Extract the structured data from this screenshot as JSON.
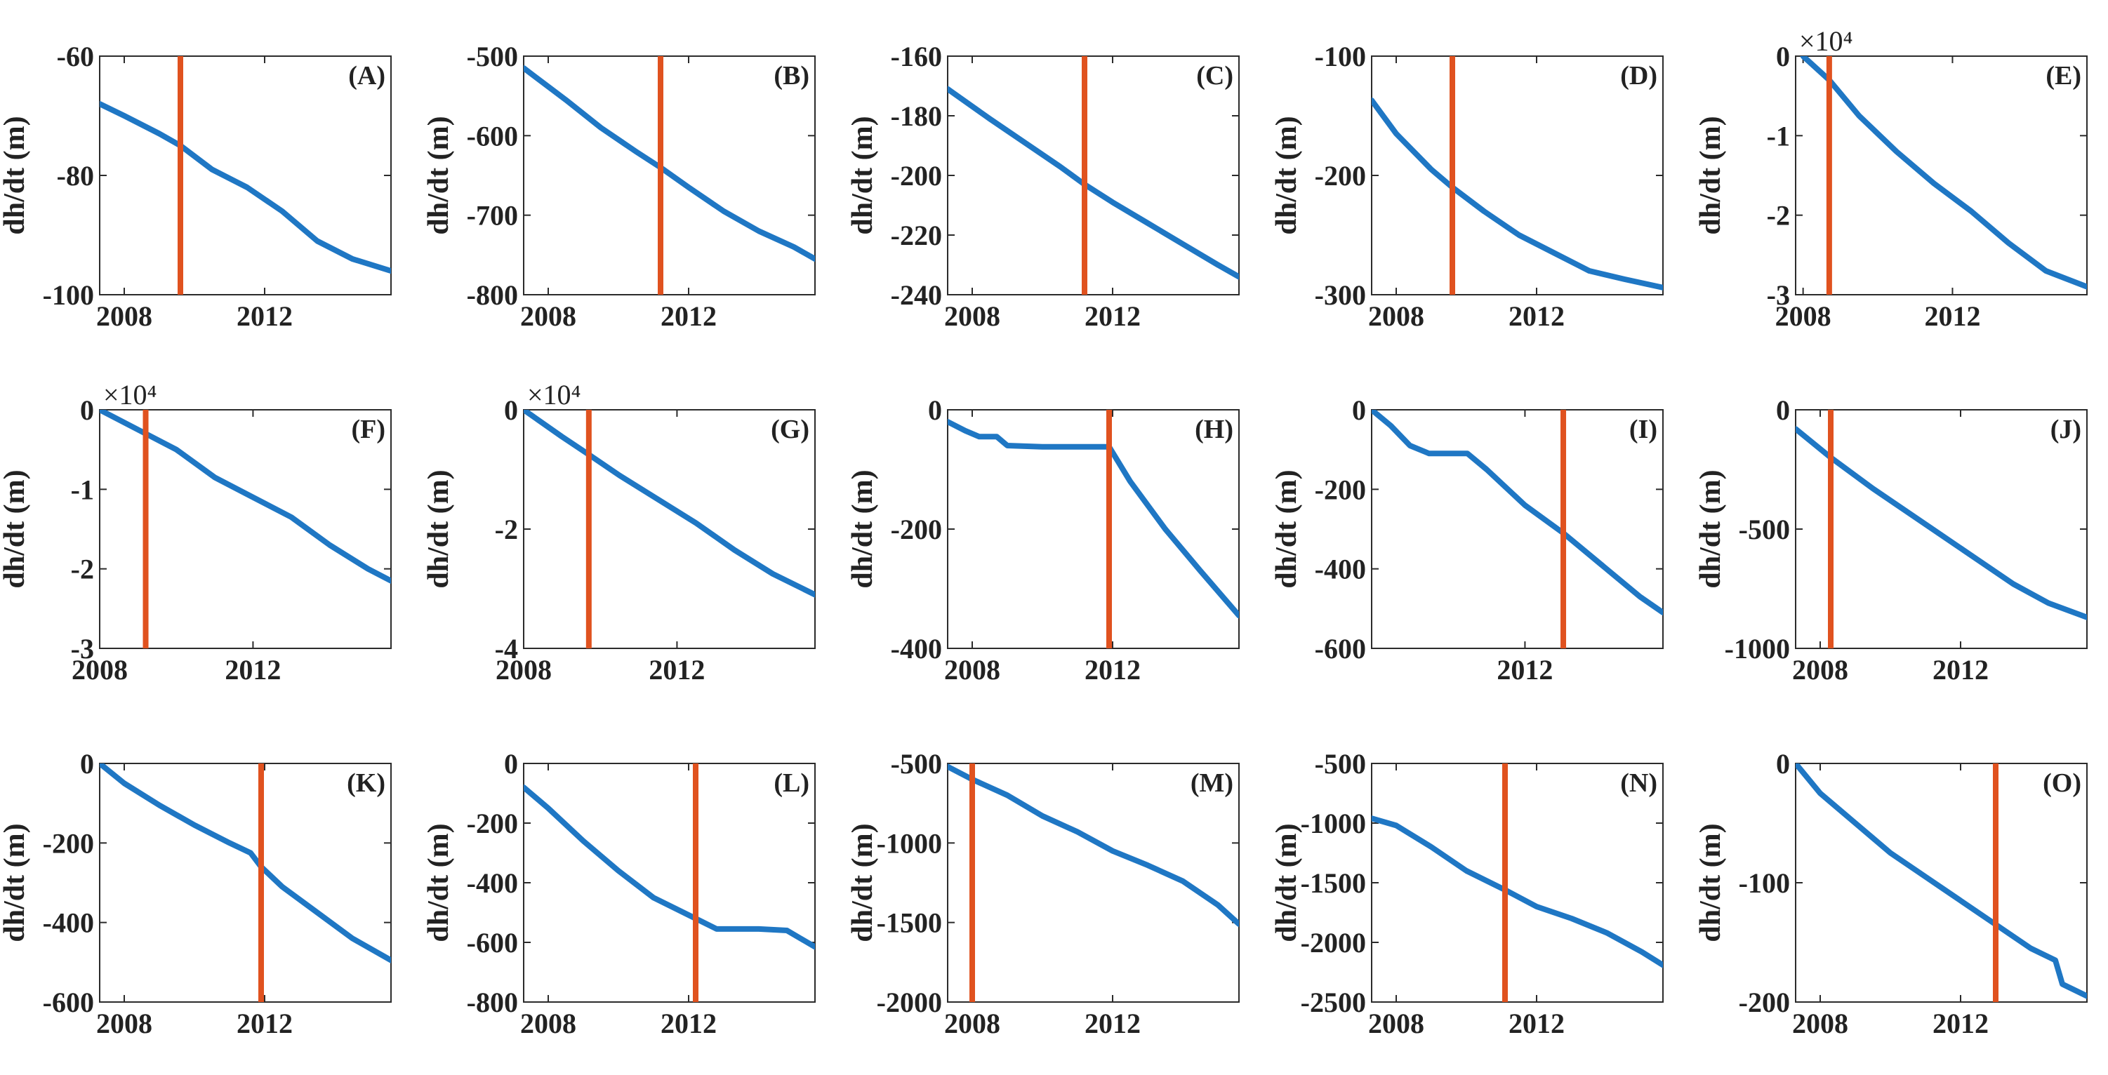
{
  "colors": {
    "series": "#1f77c4",
    "marker": "#e0521f",
    "axis": "#2b2b2b",
    "text": "#222222"
  },
  "chart_data": [
    {
      "panel": "(A)",
      "type": "line",
      "ylabel": "dh/dt (m)",
      "xlim": [
        2007.3,
        2015.6
      ],
      "ylim": [
        -100,
        -60
      ],
      "yticks": [
        -60,
        -80,
        -100
      ],
      "xticks": [
        2008,
        2012
      ],
      "y_multiplier": "",
      "marker_x": 2009.6,
      "x": [
        2007.3,
        2008.0,
        2009.0,
        2009.6,
        2010.5,
        2011.5,
        2012.5,
        2013.5,
        2014.5,
        2015.6
      ],
      "y": [
        -68,
        -70,
        -73,
        -75,
        -79,
        -82,
        -86,
        -91,
        -94,
        -96
      ]
    },
    {
      "panel": "(B)",
      "type": "line",
      "ylabel": "dh/dt (m)",
      "xlim": [
        2007.3,
        2015.6
      ],
      "ylim": [
        -800,
        -500
      ],
      "yticks": [
        -500,
        -600,
        -700,
        -800
      ],
      "xticks": [
        2008,
        2012
      ],
      "y_multiplier": "",
      "marker_x": 2011.2,
      "x": [
        2007.3,
        2008.5,
        2009.5,
        2010.5,
        2011.2,
        2012.0,
        2013.0,
        2014.0,
        2015.0,
        2015.6
      ],
      "y": [
        -515,
        -555,
        -590,
        -620,
        -640,
        -665,
        -695,
        -720,
        -740,
        -755
      ]
    },
    {
      "panel": "(C)",
      "type": "line",
      "ylabel": "dh/dt (m)",
      "xlim": [
        2007.3,
        2015.6
      ],
      "ylim": [
        -240,
        -160
      ],
      "yticks": [
        -160,
        -180,
        -200,
        -220,
        -240
      ],
      "xticks": [
        2008,
        2012
      ],
      "y_multiplier": "",
      "marker_x": 2011.2,
      "x": [
        2007.3,
        2008.5,
        2009.5,
        2010.5,
        2011.2,
        2012.0,
        2013.0,
        2014.0,
        2015.0,
        2015.6
      ],
      "y": [
        -171,
        -181,
        -189,
        -197,
        -203,
        -209,
        -216,
        -223,
        -230,
        -234
      ]
    },
    {
      "panel": "(D)",
      "type": "line",
      "ylabel": "dh/dt (m)",
      "xlim": [
        2007.3,
        2015.6
      ],
      "ylim": [
        -300,
        -100
      ],
      "yticks": [
        -100,
        -200,
        -300
      ],
      "xticks": [
        2008,
        2012
      ],
      "y_multiplier": "",
      "marker_x": 2009.6,
      "x": [
        2007.3,
        2008.0,
        2009.0,
        2009.6,
        2010.5,
        2011.5,
        2012.5,
        2013.5,
        2014.5,
        2015.6
      ],
      "y": [
        -137,
        -165,
        -195,
        -210,
        -230,
        -250,
        -265,
        -280,
        -287,
        -294
      ]
    },
    {
      "panel": "(E)",
      "type": "line",
      "ylabel": "dh/dt (m)",
      "xlim": [
        2007.8,
        2015.6
      ],
      "ylim": [
        -3,
        0
      ],
      "yticks": [
        0,
        -1,
        -2,
        -3
      ],
      "xticks": [
        2008,
        2012
      ],
      "y_multiplier": "×10⁴",
      "marker_x": 2008.7,
      "x": [
        2008.0,
        2008.7,
        2009.5,
        2010.5,
        2011.5,
        2012.5,
        2013.5,
        2014.5,
        2015.6
      ],
      "y": [
        0,
        -0.3,
        -0.75,
        -1.2,
        -1.6,
        -1.95,
        -2.35,
        -2.7,
        -2.9
      ]
    },
    {
      "panel": "(F)",
      "type": "line",
      "ylabel": "dh/dt (m)",
      "xlim": [
        2008.0,
        2015.6
      ],
      "ylim": [
        -3,
        0
      ],
      "yticks": [
        0,
        -1,
        -2,
        -3
      ],
      "xticks": [
        2008,
        2012
      ],
      "y_multiplier": "×10⁴",
      "marker_x": 2009.2,
      "x": [
        2008.0,
        2009.2,
        2010.0,
        2011.0,
        2012.0,
        2013.0,
        2014.0,
        2015.0,
        2015.6
      ],
      "y": [
        0,
        -0.3,
        -0.5,
        -0.85,
        -1.1,
        -1.35,
        -1.7,
        -2.0,
        -2.15
      ]
    },
    {
      "panel": "(G)",
      "type": "line",
      "ylabel": "dh/dt (m)",
      "xlim": [
        2008.0,
        2015.6
      ],
      "ylim": [
        -4,
        0
      ],
      "yticks": [
        0,
        -2,
        -4
      ],
      "xticks": [
        2008,
        2012
      ],
      "y_multiplier": "×10⁴",
      "marker_x": 2009.7,
      "x": [
        2008.0,
        2009.0,
        2009.7,
        2010.5,
        2011.5,
        2012.5,
        2013.5,
        2014.5,
        2015.6
      ],
      "y": [
        0,
        -0.45,
        -0.75,
        -1.1,
        -1.5,
        -1.9,
        -2.35,
        -2.75,
        -3.1
      ]
    },
    {
      "panel": "(H)",
      "type": "line",
      "ylabel": "dh/dt (m)",
      "xlim": [
        2007.3,
        2015.6
      ],
      "ylim": [
        -400,
        0
      ],
      "yticks": [
        0,
        -200,
        -400
      ],
      "xticks": [
        2008,
        2012
      ],
      "y_multiplier": "",
      "marker_x": 2011.9,
      "x": [
        2007.3,
        2007.8,
        2008.2,
        2008.7,
        2009.0,
        2010.0,
        2011.0,
        2011.9,
        2012.5,
        2013.5,
        2014.5,
        2015.6
      ],
      "y": [
        -20,
        -35,
        -45,
        -45,
        -60,
        -62,
        -62,
        -62,
        -120,
        -200,
        -270,
        -345
      ]
    },
    {
      "panel": "(I)",
      "type": "line",
      "ylabel": "dh/dt (m)",
      "xlim": [
        2008.0,
        2015.6
      ],
      "ylim": [
        -600,
        0
      ],
      "yticks": [
        0,
        -200,
        -400,
        -600
      ],
      "xticks": [
        2012
      ],
      "y_multiplier": "",
      "marker_x": 2013.0,
      "x": [
        2008.0,
        2008.5,
        2009.0,
        2009.5,
        2010.0,
        2010.5,
        2011.0,
        2012.0,
        2013.0,
        2014.0,
        2015.0,
        2015.6
      ],
      "y": [
        0,
        -40,
        -90,
        -110,
        -110,
        -110,
        -150,
        -240,
        -310,
        -390,
        -470,
        -510
      ]
    },
    {
      "panel": "(J)",
      "type": "line",
      "ylabel": "dh/dt (m)",
      "xlim": [
        2007.3,
        2015.6
      ],
      "ylim": [
        -1000,
        0
      ],
      "yticks": [
        0,
        -500,
        -1000
      ],
      "xticks": [
        2008,
        2012
      ],
      "y_multiplier": "",
      "marker_x": 2008.3,
      "x": [
        2007.3,
        2008.3,
        2009.5,
        2010.5,
        2011.5,
        2012.5,
        2013.5,
        2014.5,
        2015.6
      ],
      "y": [
        -80,
        -200,
        -330,
        -430,
        -530,
        -630,
        -730,
        -810,
        -870
      ]
    },
    {
      "panel": "(K)",
      "type": "line",
      "ylabel": "dh/dt (m)",
      "xlim": [
        2007.3,
        2015.6
      ],
      "ylim": [
        -600,
        0
      ],
      "yticks": [
        0,
        -200,
        -400,
        -600
      ],
      "xticks": [
        2008,
        2012
      ],
      "y_multiplier": "",
      "marker_x": 2011.9,
      "x": [
        2007.3,
        2008.0,
        2009.0,
        2010.0,
        2011.0,
        2011.6,
        2011.9,
        2012.5,
        2013.5,
        2014.5,
        2015.6
      ],
      "y": [
        0,
        -50,
        -105,
        -155,
        -200,
        -225,
        -260,
        -310,
        -375,
        -440,
        -495
      ]
    },
    {
      "panel": "(L)",
      "type": "line",
      "ylabel": "dh/dt (m)",
      "xlim": [
        2007.3,
        2015.6
      ],
      "ylim": [
        -800,
        0
      ],
      "yticks": [
        0,
        -200,
        -400,
        -600,
        -800
      ],
      "xticks": [
        2008,
        2012
      ],
      "y_multiplier": "",
      "marker_x": 2012.2,
      "x": [
        2007.3,
        2008.0,
        2009.0,
        2010.0,
        2011.0,
        2012.2,
        2012.8,
        2014.0,
        2014.8,
        2015.6
      ],
      "y": [
        -80,
        -150,
        -260,
        -360,
        -450,
        -520,
        -555,
        -555,
        -560,
        -615
      ]
    },
    {
      "panel": "(M)",
      "type": "line",
      "ylabel": "dh/dt (m)",
      "xlim": [
        2007.3,
        2015.6
      ],
      "ylim": [
        -2000,
        -500
      ],
      "yticks": [
        -500,
        -1000,
        -1500,
        -2000
      ],
      "xticks": [
        2008,
        2012
      ],
      "y_multiplier": "",
      "marker_x": 2008.0,
      "x": [
        2007.3,
        2008.0,
        2009.0,
        2010.0,
        2011.0,
        2012.0,
        2013.0,
        2014.0,
        2015.0,
        2015.6
      ],
      "y": [
        -520,
        -600,
        -700,
        -830,
        -930,
        -1050,
        -1140,
        -1240,
        -1390,
        -1510
      ]
    },
    {
      "panel": "(N)",
      "type": "line",
      "ylabel": "dh/dt (m)",
      "xlim": [
        2007.3,
        2015.6
      ],
      "ylim": [
        -2500,
        -500
      ],
      "yticks": [
        -500,
        -1000,
        -1500,
        -2000,
        -2500
      ],
      "xticks": [
        2008,
        2012
      ],
      "y_multiplier": "",
      "marker_x": 2011.1,
      "x": [
        2007.3,
        2008.0,
        2009.0,
        2010.0,
        2011.1,
        2012.0,
        2013.0,
        2014.0,
        2015.0,
        2015.6
      ],
      "y": [
        -960,
        -1020,
        -1200,
        -1400,
        -1560,
        -1700,
        -1800,
        -1920,
        -2080,
        -2190
      ]
    },
    {
      "panel": "(O)",
      "type": "line",
      "ylabel": "dh/dt (m)",
      "xlim": [
        2007.3,
        2015.6
      ],
      "ylim": [
        -200,
        0
      ],
      "yticks": [
        0,
        -100,
        -200
      ],
      "xticks": [
        2008,
        2012
      ],
      "y_multiplier": "",
      "marker_x": 2013.0,
      "x": [
        2007.3,
        2008.0,
        2009.0,
        2010.0,
        2011.0,
        2012.0,
        2013.0,
        2014.0,
        2014.7,
        2014.9,
        2015.6
      ],
      "y": [
        0,
        -25,
        -50,
        -75,
        -95,
        -115,
        -135,
        -155,
        -165,
        -185,
        -195
      ]
    }
  ]
}
